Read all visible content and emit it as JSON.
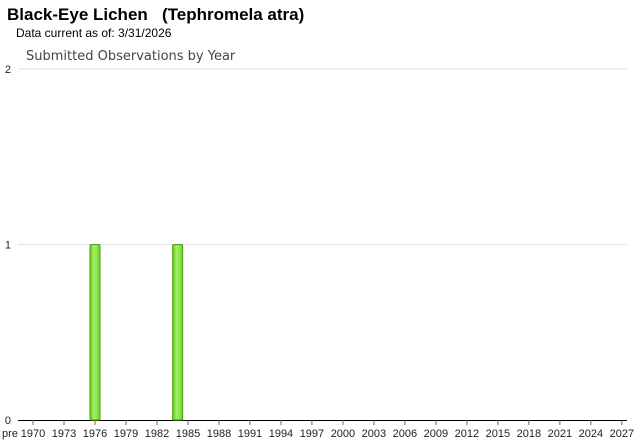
{
  "header": {
    "title": "Black-Eye Lichen   (Tephromela atra)",
    "data_current": "Data current as of: 3/31/2026"
  },
  "chart_data": {
    "type": "bar",
    "title": "Submitted Observations by Year",
    "xlabel": "",
    "ylabel": "",
    "ylim": [
      0,
      2
    ],
    "yticks": [
      0,
      1,
      2
    ],
    "grid": true,
    "bar_color": "#7fe03a",
    "bar_border": "#4c9e0c",
    "xtick_labels": [
      "pre",
      "1970",
      "1973",
      "1976",
      "1979",
      "1982",
      "1985",
      "1988",
      "1991",
      "1994",
      "1997",
      "2000",
      "2003",
      "2006",
      "2009",
      "2012",
      "2015",
      "2018",
      "2021",
      "2024",
      "2027"
    ],
    "categories_range": [
      "pre",
      1970,
      2027
    ],
    "points": [
      {
        "year": 1976,
        "value": 1
      },
      {
        "year": 1984,
        "value": 1
      }
    ]
  }
}
